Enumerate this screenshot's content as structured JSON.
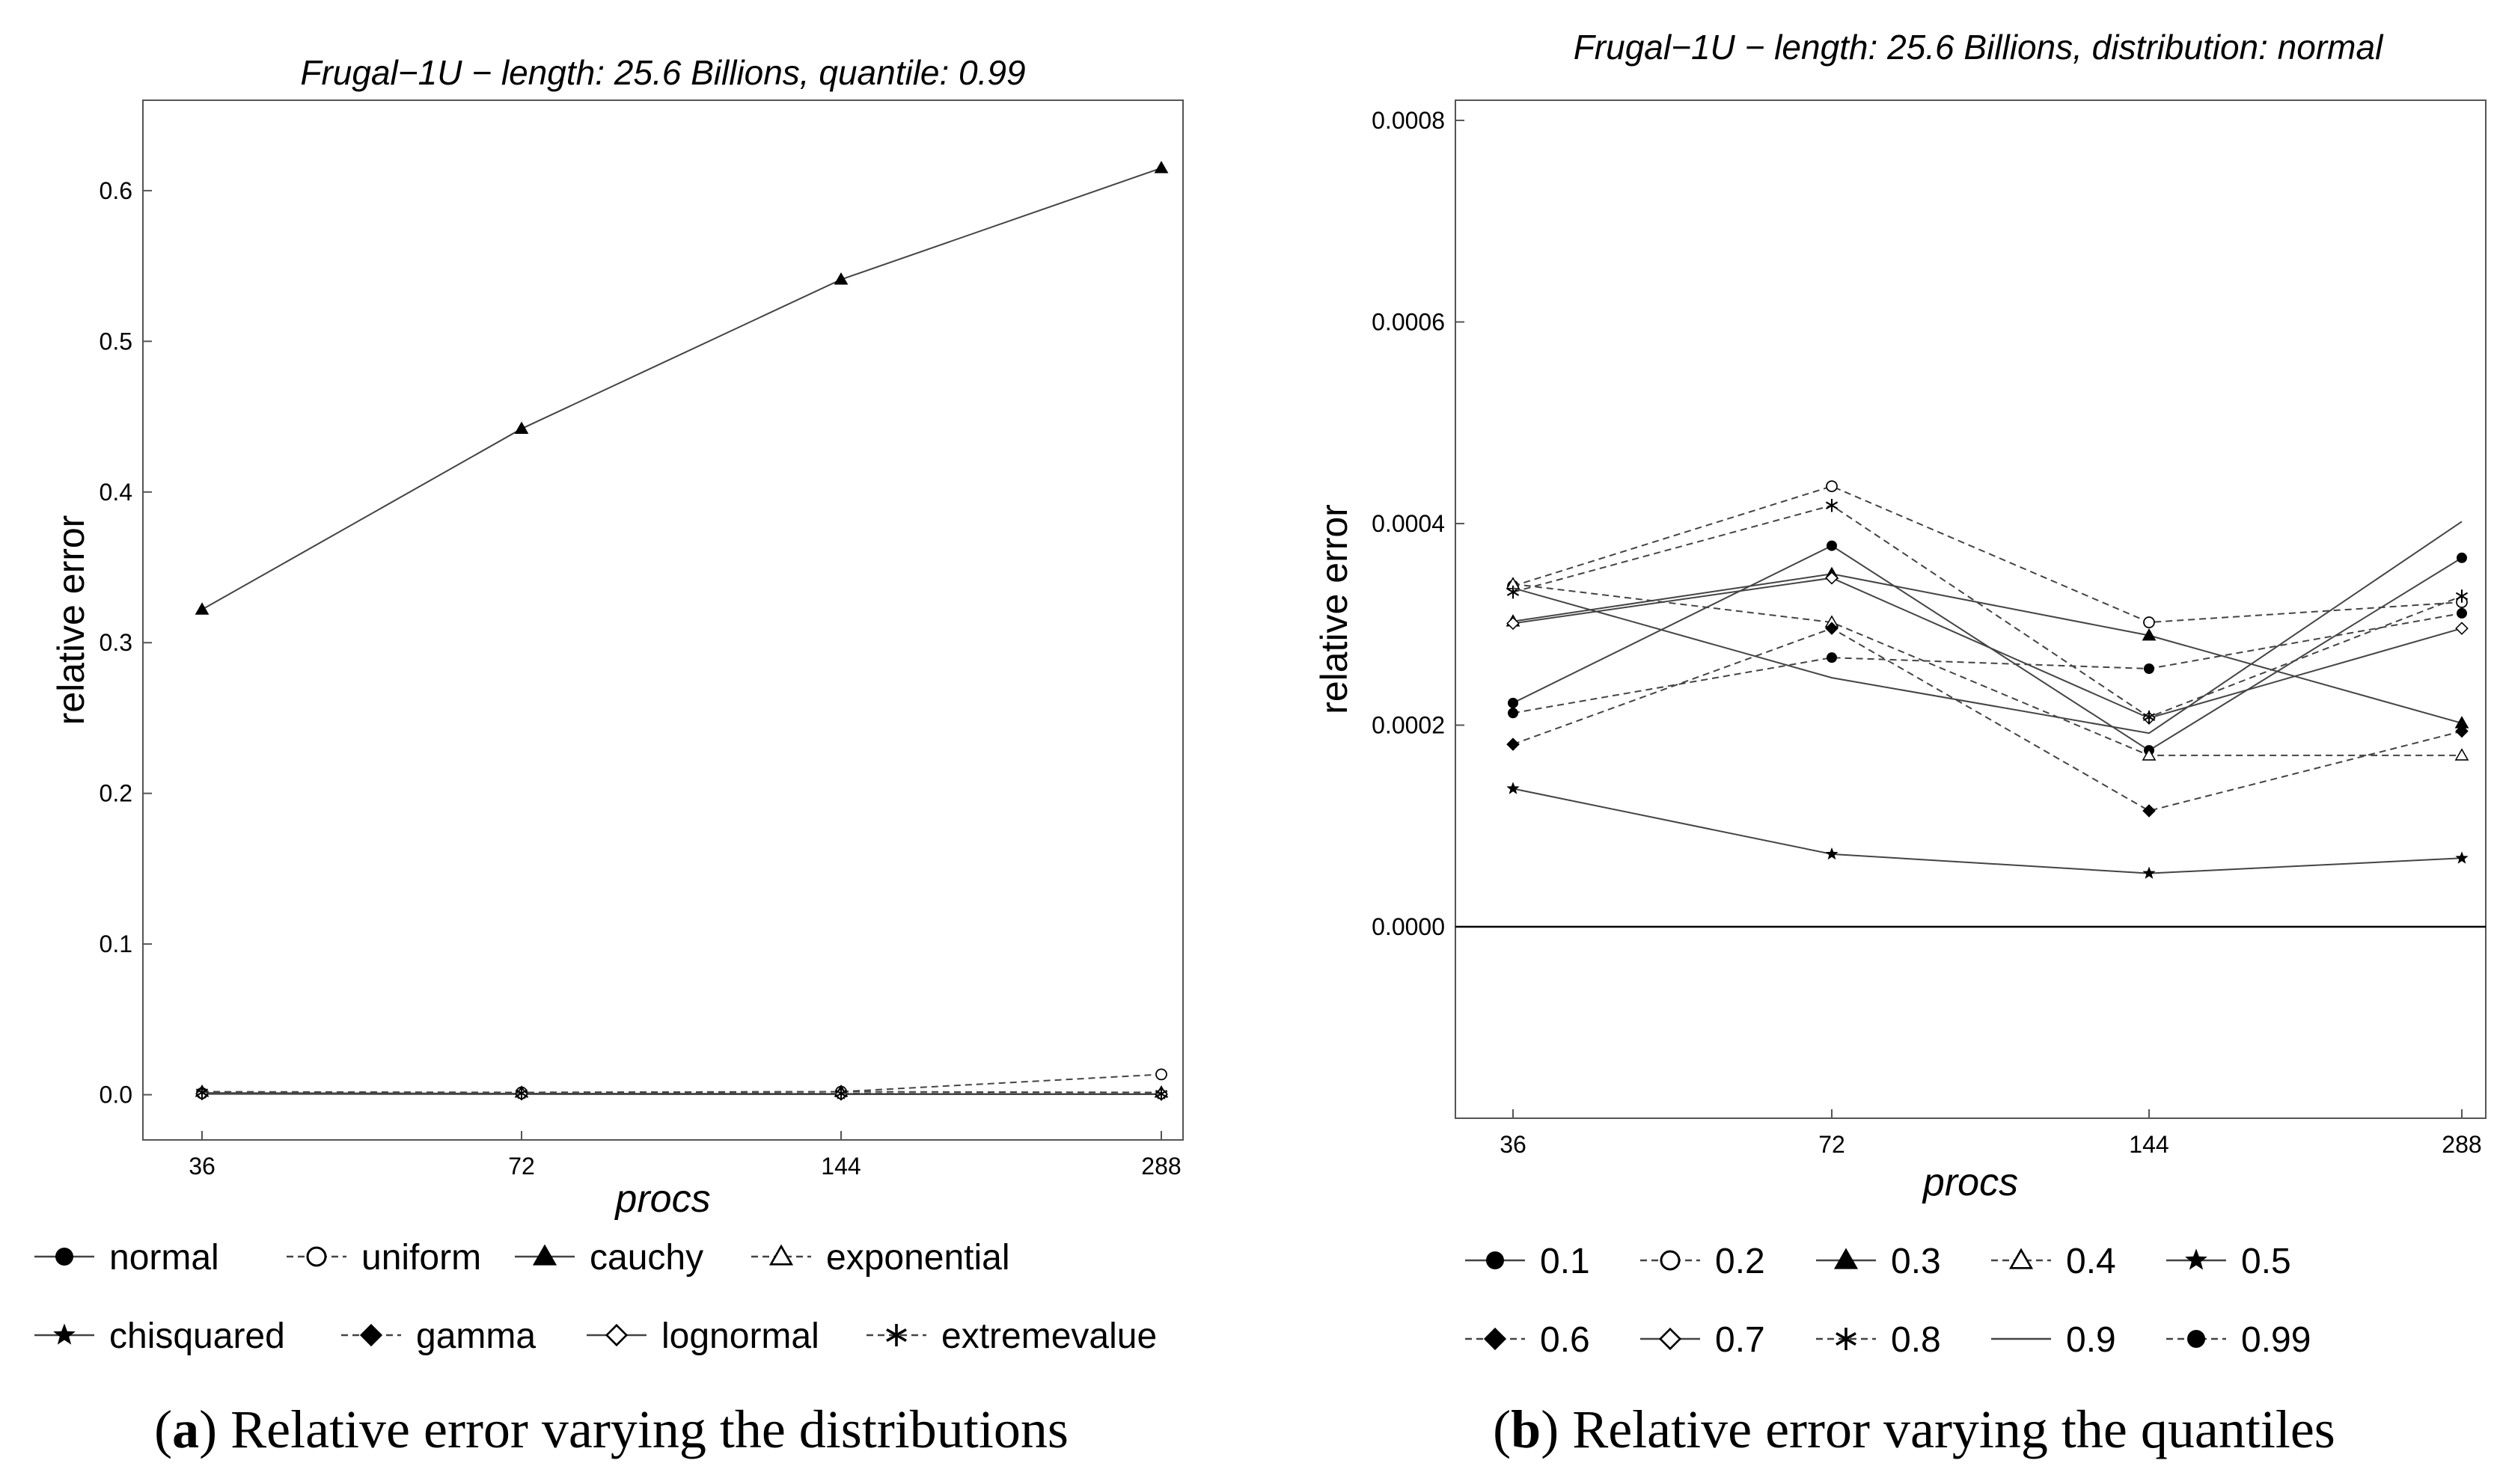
{
  "chart_data": [
    {
      "type": "line",
      "title": "Frugal−1U − length: 25.6 Billions, quantile: 0.99",
      "xlabel": "procs",
      "ylabel": "relative error",
      "caption_tag": "a",
      "caption_text": " Relative error varying the distributions",
      "categories": [
        "36",
        "72",
        "144",
        "288"
      ],
      "ylim": [
        -0.03,
        0.66
      ],
      "yticks": [
        "0.0",
        "0.1",
        "0.2",
        "0.3",
        "0.4",
        "0.5",
        "0.6"
      ],
      "ytick_values": [
        0,
        0.1,
        0.2,
        0.3,
        0.4,
        0.5,
        0.6
      ],
      "series": [
        {
          "name": "normal",
          "marker": "disc",
          "dash": false,
          "values": [
            0.0005,
            0.0004,
            0.0003,
            0.0003
          ]
        },
        {
          "name": "uniform",
          "marker": "circle",
          "dash": true,
          "values": [
            0.001,
            0.0015,
            0.002,
            0.0135
          ]
        },
        {
          "name": "cauchy",
          "marker": "tri",
          "dash": false,
          "values": [
            0.322,
            0.442,
            0.541,
            0.615
          ]
        },
        {
          "name": "exponential",
          "marker": "tri-open",
          "dash": true,
          "values": [
            0.002,
            0.0015,
            0.002,
            0.0015
          ]
        },
        {
          "name": "chisquared",
          "marker": "star",
          "dash": false,
          "values": [
            0.0012,
            0.0008,
            0.0006,
            0.0005
          ]
        },
        {
          "name": "gamma",
          "marker": "diamond",
          "dash": true,
          "values": [
            0.0008,
            0.0006,
            0.0004,
            0.0003
          ]
        },
        {
          "name": "lognormal",
          "marker": "diamond-open",
          "dash": false,
          "values": [
            0.0006,
            0.0005,
            0.0004,
            0.0004
          ]
        },
        {
          "name": "extremevalue",
          "marker": "asterisk",
          "dash": true,
          "values": [
            0.0015,
            0.001,
            0.0008,
            0.0006
          ]
        }
      ]
    },
    {
      "type": "line",
      "title": "Frugal−1U − length: 25.6 Billions, distribution: normal",
      "xlabel": "procs",
      "ylabel": "relative error",
      "caption_tag": "b",
      "caption_text": " Relative error varying the quantiles",
      "categories": [
        "36",
        "72",
        "144",
        "288"
      ],
      "ylim": [
        -0.00019,
        0.00082
      ],
      "yticks": [
        "0.0000",
        "0.0002",
        "0.0004",
        "0.0006",
        "0.0008"
      ],
      "ytick_values": [
        0,
        0.0002,
        0.0004,
        0.0006,
        0.0008
      ],
      "series": [
        {
          "name": "0.1",
          "marker": "disc",
          "dash": false,
          "values": [
            0.000222,
            0.000378,
            0.000175,
            0.000366
          ]
        },
        {
          "name": "0.2",
          "marker": "circle",
          "dash": true,
          "values": [
            0.000338,
            0.000437,
            0.000302,
            0.000322
          ]
        },
        {
          "name": "0.3",
          "marker": "tri",
          "dash": false,
          "values": [
            0.000303,
            0.00035,
            0.000289,
            0.000202
          ]
        },
        {
          "name": "0.4",
          "marker": "tri-open",
          "dash": true,
          "values": [
            0.00034,
            0.000302,
            0.00017,
            0.00017
          ]
        },
        {
          "name": "0.5",
          "marker": "star",
          "dash": false,
          "values": [
            0.000137,
            7.2e-05,
            5.3e-05,
            6.8e-05
          ]
        },
        {
          "name": "0.6",
          "marker": "diamond",
          "dash": true,
          "values": [
            0.000181,
            0.000296,
            0.000115,
            0.000194
          ]
        },
        {
          "name": "0.7",
          "marker": "diamond-open",
          "dash": false,
          "values": [
            0.000301,
            0.000346,
            0.000207,
            0.000296
          ]
        },
        {
          "name": "0.8",
          "marker": "asterisk",
          "dash": true,
          "values": [
            0.000332,
            0.000418,
            0.000208,
            0.000328
          ]
        },
        {
          "name": "0.9",
          "marker": "none",
          "dash": false,
          "values": [
            0.000336,
            0.000247,
            0.000192,
            0.000402
          ]
        },
        {
          "name": "0.99",
          "marker": "disc",
          "dash": true,
          "values": [
            0.000212,
            0.000267,
            0.000256,
            0.000311
          ]
        }
      ]
    }
  ]
}
